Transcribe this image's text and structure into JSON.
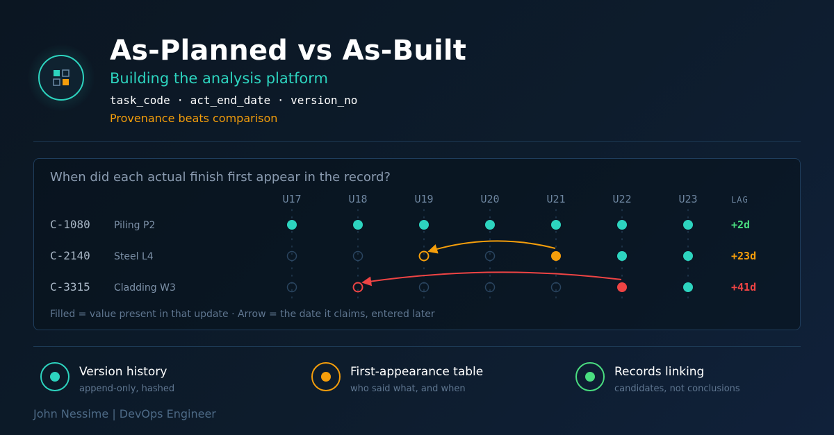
{
  "header": {
    "title": "As-Planned vs As-Built",
    "subtitle": "Building the analysis platform",
    "fields": "task_code · act_end_date · version_no",
    "tagline": "Provenance beats comparison"
  },
  "panel": {
    "question": "When did each actual finish first appear in the record?",
    "legend_note": "Filled = value present in that update · Arrow = the date it claims, entered later"
  },
  "chart_data": {
    "type": "timeline-matrix",
    "columns": [
      "U17",
      "U18",
      "U19",
      "U20",
      "U21",
      "U22",
      "U23"
    ],
    "lag_header": "LAG",
    "rows": [
      {
        "code": "C-1080",
        "name": "Piling P2",
        "states": [
          "filled",
          "filled",
          "filled",
          "filled",
          "filled",
          "filled",
          "filled"
        ],
        "lag": "+2d",
        "color": "#2dd4bf",
        "lag_color": "#4ade80",
        "arrow": null
      },
      {
        "code": "C-2140",
        "name": "Steel L4",
        "states": [
          "empty",
          "empty",
          "claimed",
          "empty",
          "first",
          "filled",
          "filled"
        ],
        "lag": "+23d",
        "color": "#f59e0b",
        "lag_color": "#f59e0b",
        "arrow": {
          "from": "U21",
          "to": "U19"
        }
      },
      {
        "code": "C-3315",
        "name": "Cladding W3",
        "states": [
          "empty",
          "claimed",
          "empty",
          "empty",
          "empty",
          "first",
          "filled"
        ],
        "lag": "+41d",
        "color": "#ef4444",
        "lag_color": "#ef4444",
        "arrow": {
          "from": "U22",
          "to": "U18"
        }
      }
    ],
    "colors": {
      "filled": "#2dd4bf",
      "empty_ring": "#2a4560",
      "grid": "#233b52"
    }
  },
  "features": [
    {
      "title": "Version history",
      "subtitle": "append-only, hashed",
      "icon": "teal-dot-icon",
      "color": "#2dd4bf"
    },
    {
      "title": "First-appearance table",
      "subtitle": "who said what, and when",
      "icon": "amber-dot-icon",
      "color": "#f59e0b"
    },
    {
      "title": "Records linking",
      "subtitle": "candidates, not conclusions",
      "icon": "green-dot-icon",
      "color": "#4ade80"
    }
  ],
  "footer": {
    "author": "John Nessime | DevOps Engineer"
  }
}
